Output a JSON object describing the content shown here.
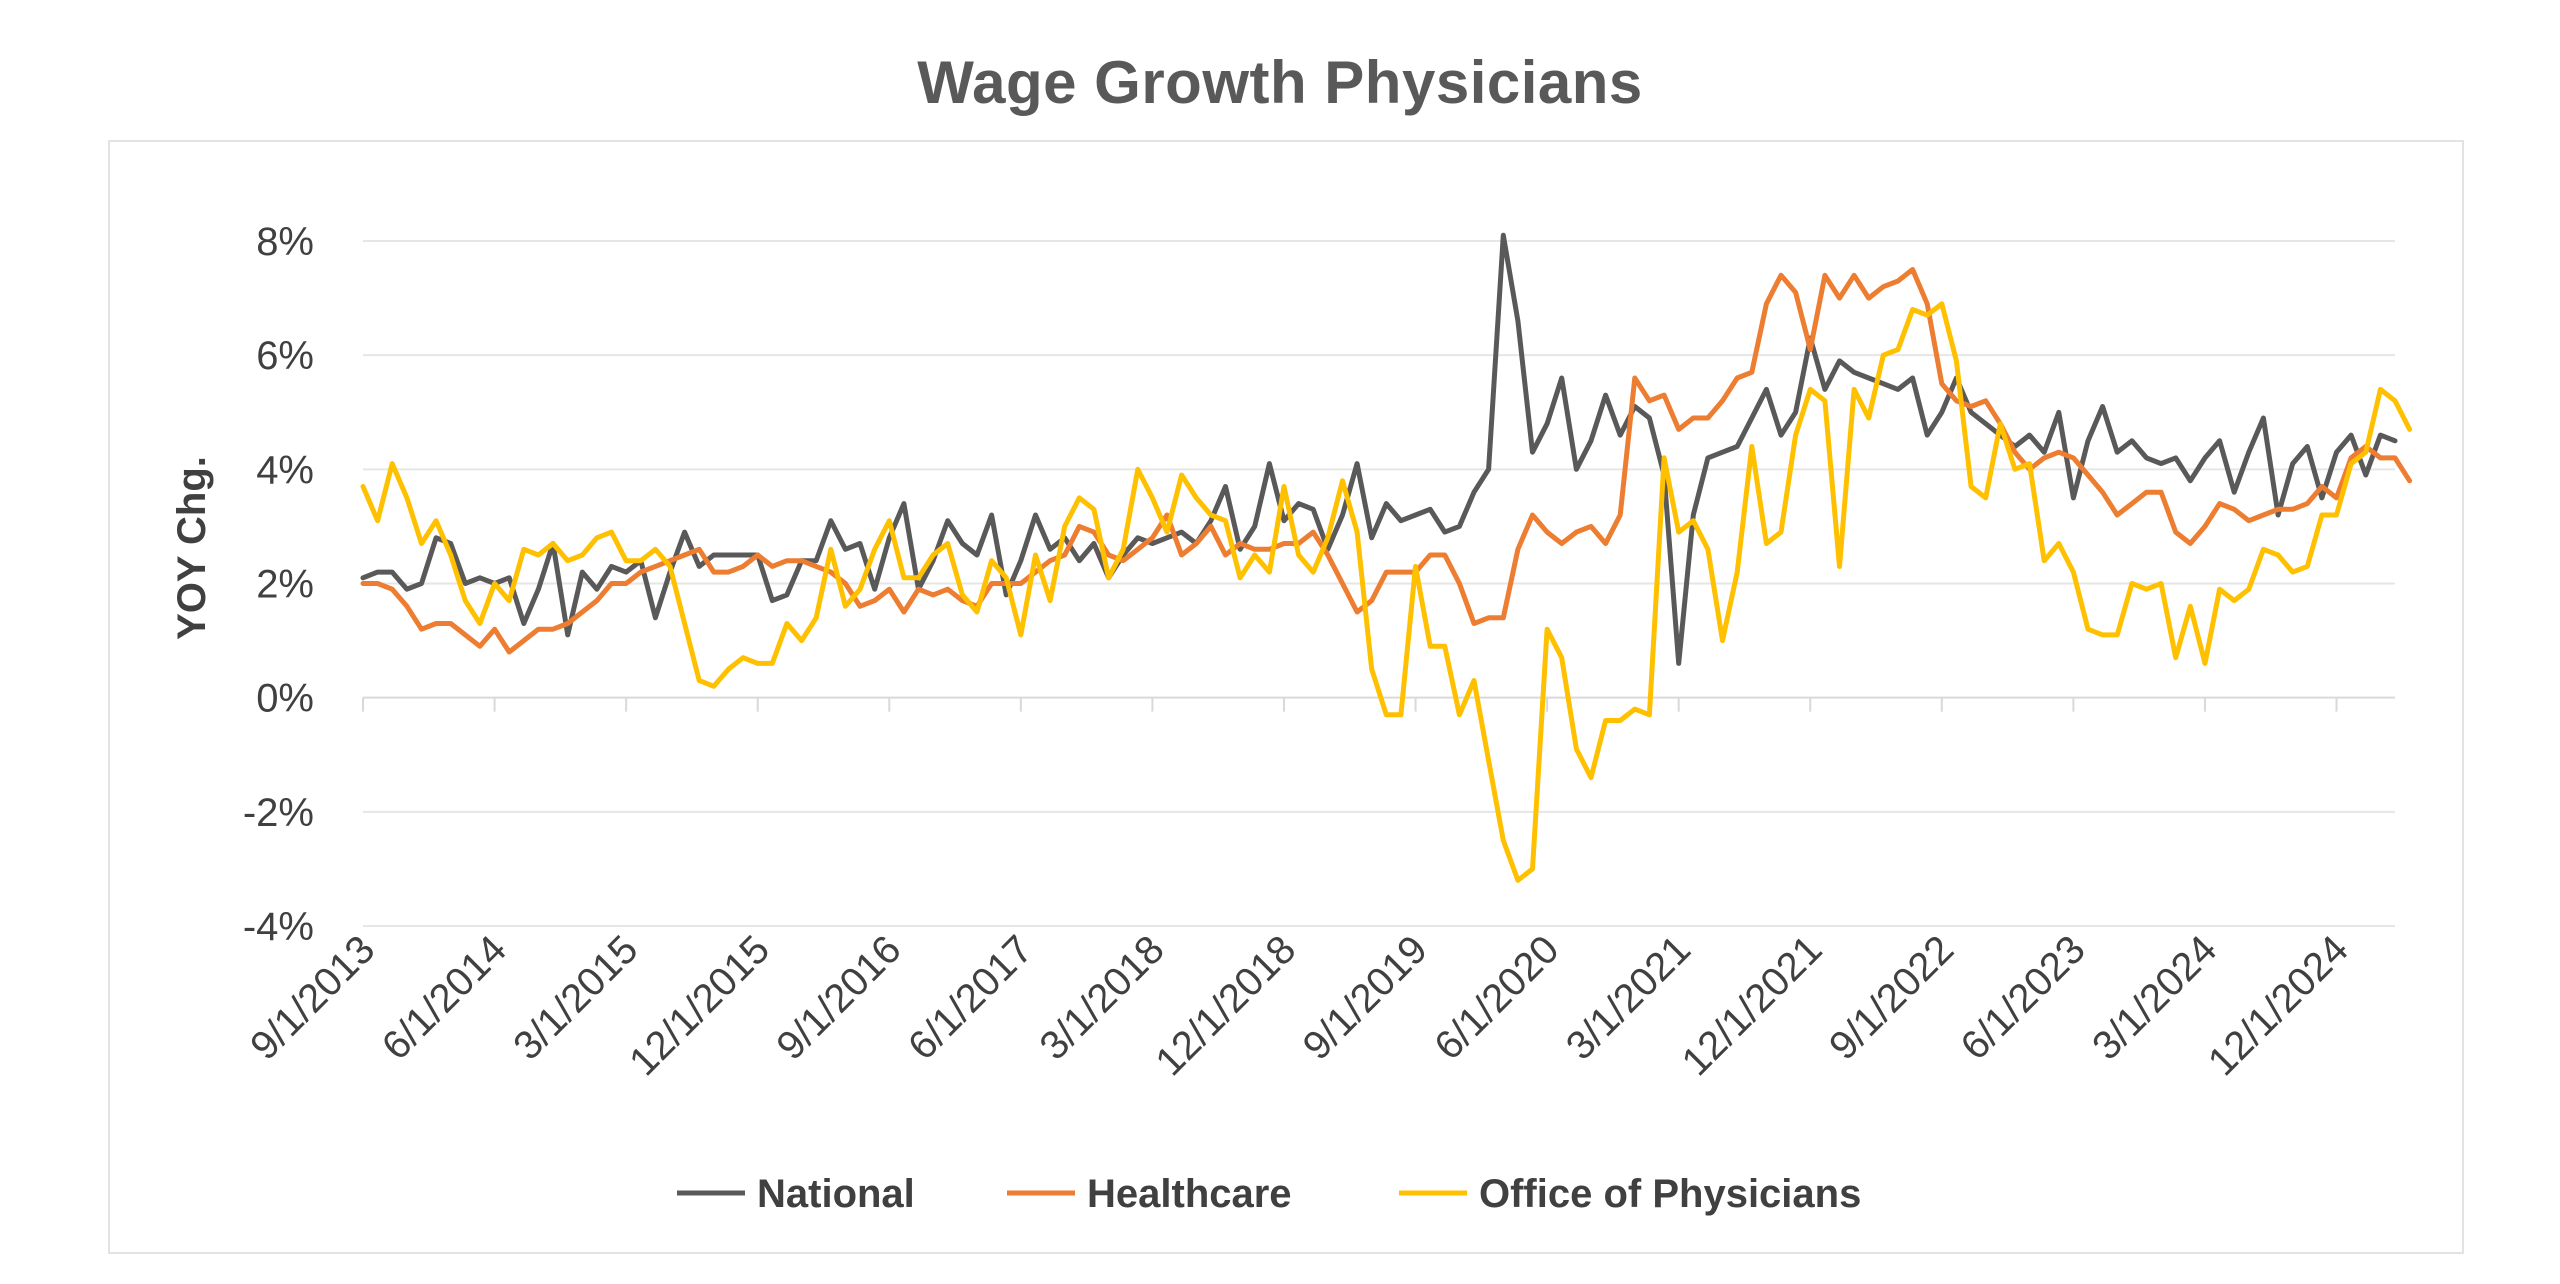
{
  "chart_data": {
    "type": "line",
    "title": "Wage Growth Physicians",
    "xlabel": "",
    "ylabel": "YOY Chg.",
    "ylim": [
      -4,
      8
    ],
    "y_ticks": [
      "8%",
      "6%",
      "4%",
      "2%",
      "0%",
      "-2%",
      "-4%"
    ],
    "y_tick_values": [
      8,
      6,
      4,
      2,
      0,
      -2,
      -4
    ],
    "x_tick_labels": [
      "9/1/2013",
      "6/1/2014",
      "3/1/2015",
      "12/1/2015",
      "9/1/2016",
      "6/1/2017",
      "3/1/2018",
      "12/1/2018",
      "9/1/2019",
      "6/1/2020",
      "3/1/2021",
      "12/1/2021",
      "9/1/2022",
      "6/1/2023",
      "3/1/2024",
      "12/1/2024"
    ],
    "x_start": "9/1/2013",
    "frequency": "monthly",
    "grid": true,
    "legend_position": "bottom",
    "series": [
      {
        "name": "National",
        "color": "#595959",
        "values": [
          2.1,
          2.2,
          2.2,
          1.9,
          2.0,
          2.8,
          2.7,
          2.0,
          2.1,
          2.0,
          2.1,
          1.3,
          1.9,
          2.7,
          1.1,
          2.2,
          1.9,
          2.3,
          2.2,
          2.4,
          1.4,
          2.2,
          2.9,
          2.3,
          2.5,
          2.5,
          2.5,
          2.5,
          1.7,
          1.8,
          2.4,
          2.4,
          3.1,
          2.6,
          2.7,
          1.9,
          2.8,
          3.4,
          1.9,
          2.4,
          3.1,
          2.7,
          2.5,
          3.2,
          1.8,
          2.4,
          3.2,
          2.6,
          2.8,
          2.4,
          2.7,
          2.1,
          2.5,
          2.8,
          2.7,
          2.8,
          2.9,
          2.7,
          3.1,
          3.7,
          2.6,
          3.0,
          4.1,
          3.1,
          3.4,
          3.3,
          2.6,
          3.2,
          4.1,
          2.8,
          3.4,
          3.1,
          3.2,
          3.3,
          2.9,
          3.0,
          3.6,
          4.0,
          8.1,
          6.6,
          4.3,
          4.8,
          5.6,
          4.0,
          4.5,
          5.3,
          4.6,
          5.1,
          4.9,
          3.9,
          0.6,
          3.2,
          4.2,
          4.3,
          4.4,
          4.9,
          5.4,
          4.6,
          5.0,
          6.3,
          5.4,
          5.9,
          5.7,
          5.6,
          5.5,
          5.4,
          5.6,
          4.6,
          5.0,
          5.6,
          5.0,
          4.8,
          4.6,
          4.4,
          4.6,
          4.3,
          5.0,
          3.5,
          4.5,
          5.1,
          4.3,
          4.5,
          4.2,
          4.1,
          4.2,
          3.8,
          4.2,
          4.5,
          3.6,
          4.3,
          4.9,
          3.2,
          4.1,
          4.4,
          3.5,
          4.3,
          4.6,
          3.9,
          4.6,
          4.5
        ]
      },
      {
        "name": "Healthcare",
        "color": "#ed7d31",
        "values": [
          2.0,
          2.0,
          1.9,
          1.6,
          1.2,
          1.3,
          1.3,
          1.1,
          0.9,
          1.2,
          0.8,
          1.0,
          1.2,
          1.2,
          1.3,
          1.5,
          1.7,
          2.0,
          2.0,
          2.2,
          2.3,
          2.4,
          2.5,
          2.6,
          2.2,
          2.2,
          2.3,
          2.5,
          2.3,
          2.4,
          2.4,
          2.3,
          2.2,
          2.0,
          1.6,
          1.7,
          1.9,
          1.5,
          1.9,
          1.8,
          1.9,
          1.7,
          1.6,
          2.0,
          2.0,
          2.0,
          2.2,
          2.4,
          2.5,
          3.0,
          2.9,
          2.5,
          2.4,
          2.6,
          2.8,
          3.2,
          2.5,
          2.7,
          3.0,
          2.5,
          2.7,
          2.6,
          2.6,
          2.7,
          2.7,
          2.9,
          2.5,
          2.0,
          1.5,
          1.7,
          2.2,
          2.2,
          2.2,
          2.5,
          2.5,
          2.0,
          1.3,
          1.4,
          1.4,
          2.6,
          3.2,
          2.9,
          2.7,
          2.9,
          3.0,
          2.7,
          3.2,
          5.6,
          5.2,
          5.3,
          4.7,
          4.9,
          4.9,
          5.2,
          5.6,
          5.7,
          6.9,
          7.4,
          7.1,
          6.1,
          7.4,
          7.0,
          7.4,
          7.0,
          7.2,
          7.3,
          7.5,
          6.9,
          5.5,
          5.2,
          5.1,
          5.2,
          4.8,
          4.3,
          4.0,
          4.2,
          4.3,
          4.2,
          3.9,
          3.6,
          3.2,
          3.4,
          3.6,
          3.6,
          2.9,
          2.7,
          3.0,
          3.4,
          3.3,
          3.1,
          3.2,
          3.3,
          3.3,
          3.4,
          3.7,
          3.5,
          4.2,
          4.4,
          4.2,
          4.2,
          3.8
        ]
      },
      {
        "name": "Office of Physicians",
        "color": "#ffc000",
        "values": [
          3.7,
          3.1,
          4.1,
          3.5,
          2.7,
          3.1,
          2.5,
          1.7,
          1.3,
          2.0,
          1.7,
          2.6,
          2.5,
          2.7,
          2.4,
          2.5,
          2.8,
          2.9,
          2.4,
          2.4,
          2.6,
          2.3,
          1.3,
          0.3,
          0.2,
          0.5,
          0.7,
          0.6,
          0.6,
          1.3,
          1.0,
          1.4,
          2.6,
          1.6,
          1.9,
          2.6,
          3.1,
          2.1,
          2.1,
          2.5,
          2.7,
          1.8,
          1.5,
          2.4,
          2.1,
          1.1,
          2.5,
          1.7,
          3.0,
          3.5,
          3.3,
          2.1,
          2.6,
          4.0,
          3.5,
          2.9,
          3.9,
          3.5,
          3.2,
          3.1,
          2.1,
          2.5,
          2.2,
          3.7,
          2.5,
          2.2,
          2.8,
          3.8,
          2.9,
          0.5,
          -0.3,
          -0.3,
          2.3,
          0.9,
          0.9,
          -0.3,
          0.3,
          -1.1,
          -2.5,
          -3.2,
          -3.0,
          1.2,
          0.7,
          -0.9,
          -1.4,
          -0.4,
          -0.4,
          -0.2,
          -0.3,
          4.2,
          2.9,
          3.1,
          2.6,
          1.0,
          2.2,
          4.4,
          2.7,
          2.9,
          4.6,
          5.4,
          5.2,
          2.3,
          5.4,
          4.9,
          6.0,
          6.1,
          6.8,
          6.7,
          6.9,
          5.9,
          3.7,
          3.5,
          4.8,
          4.0,
          4.1,
          2.4,
          2.7,
          2.2,
          1.2,
          1.1,
          1.1,
          2.0,
          1.9,
          2.0,
          0.7,
          1.6,
          0.6,
          1.9,
          1.7,
          1.9,
          2.6,
          2.5,
          2.2,
          2.3,
          3.2,
          3.2,
          4.1,
          4.3,
          5.4,
          5.2,
          4.7
        ]
      }
    ]
  }
}
